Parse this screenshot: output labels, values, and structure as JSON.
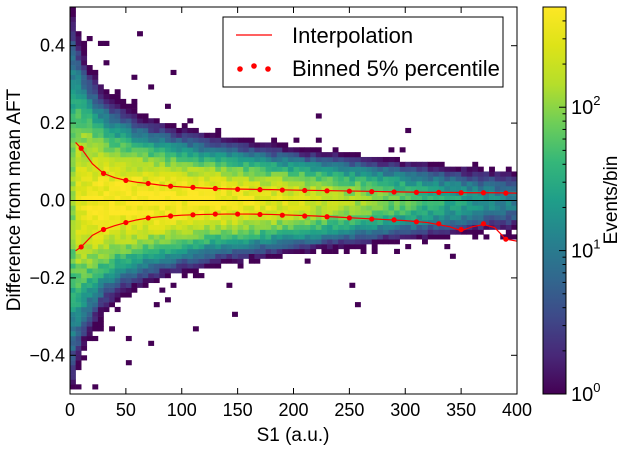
{
  "chart_data": {
    "type": "heatmap",
    "xlabel": "S1 (a.u.)",
    "ylabel": "Difference from mean AFT",
    "xlim": [
      0,
      400
    ],
    "ylim": [
      -0.5,
      0.5
    ],
    "xticks": [
      0,
      50,
      100,
      150,
      200,
      250,
      300,
      350,
      400
    ],
    "yticks": [
      -0.4,
      -0.2,
      0.0,
      0.2,
      0.4
    ],
    "xtick_labels": [
      "0",
      "50",
      "100",
      "150",
      "200",
      "250",
      "300",
      "350",
      "400"
    ],
    "ytick_labels": [
      "−0.4",
      "−0.2",
      "0.0",
      "0.2",
      "0.4"
    ],
    "grid": false,
    "legend_position": "top-right",
    "colorbar": {
      "label": "Events/bin",
      "scale": "log",
      "range": [
        1,
        500
      ],
      "ticks": [
        {
          "value": 1,
          "base": "10",
          "exp": "0"
        },
        {
          "value": 10,
          "base": "10",
          "exp": "1"
        },
        {
          "value": 100,
          "base": "10",
          "exp": "2"
        }
      ],
      "colormap": "viridis"
    },
    "horizontal_line": 0.0,
    "series": [
      {
        "name": "Binned 5% percentile",
        "kind": "scatter",
        "color": "#ff0000",
        "x": [
          10,
          30,
          50,
          70,
          90,
          110,
          130,
          150,
          170,
          190,
          210,
          230,
          250,
          270,
          290,
          310,
          330,
          350,
          370,
          390
        ],
        "y": [
          0.135,
          0.07,
          0.052,
          0.044,
          0.037,
          0.034,
          0.031,
          0.029,
          0.028,
          0.027,
          0.026,
          0.025,
          0.024,
          0.023,
          0.022,
          0.021,
          0.021,
          0.02,
          0.02,
          0.019
        ]
      },
      {
        "name": "",
        "kind": "scatter",
        "color": "#ff0000",
        "x": [
          10,
          30,
          50,
          70,
          90,
          110,
          130,
          150,
          170,
          190,
          210,
          230,
          250,
          270,
          290,
          310,
          330,
          350,
          370,
          390
        ],
        "y": [
          -0.12,
          -0.075,
          -0.057,
          -0.045,
          -0.04,
          -0.037,
          -0.035,
          -0.035,
          -0.036,
          -0.038,
          -0.04,
          -0.042,
          -0.045,
          -0.048,
          -0.05,
          -0.055,
          -0.06,
          -0.075,
          -0.06,
          -0.1
        ]
      },
      {
        "name": "Interpolation",
        "kind": "line",
        "color": "#ff0000",
        "x": [
          5,
          10,
          20,
          30,
          40,
          50,
          60,
          70,
          80,
          90,
          100,
          120,
          140,
          160,
          180,
          200,
          220,
          240,
          260,
          280,
          300,
          320,
          340,
          360,
          380,
          400
        ],
        "y": [
          0.15,
          0.135,
          0.095,
          0.07,
          0.059,
          0.052,
          0.047,
          0.044,
          0.04,
          0.037,
          0.035,
          0.032,
          0.03,
          0.029,
          0.028,
          0.027,
          0.026,
          0.025,
          0.024,
          0.023,
          0.022,
          0.021,
          0.021,
          0.02,
          0.02,
          0.019
        ]
      },
      {
        "name": "",
        "kind": "line",
        "color": "#ff0000",
        "x": [
          5,
          10,
          20,
          30,
          40,
          50,
          60,
          70,
          80,
          90,
          100,
          120,
          140,
          160,
          180,
          200,
          220,
          240,
          260,
          280,
          300,
          320,
          340,
          350,
          360,
          370,
          380,
          390,
          400
        ],
        "y": [
          -0.13,
          -0.12,
          -0.09,
          -0.075,
          -0.065,
          -0.057,
          -0.05,
          -0.045,
          -0.042,
          -0.04,
          -0.038,
          -0.036,
          -0.035,
          -0.035,
          -0.036,
          -0.038,
          -0.04,
          -0.043,
          -0.046,
          -0.049,
          -0.052,
          -0.057,
          -0.068,
          -0.078,
          -0.068,
          -0.062,
          -0.07,
          -0.1,
          -0.105
        ]
      }
    ]
  }
}
